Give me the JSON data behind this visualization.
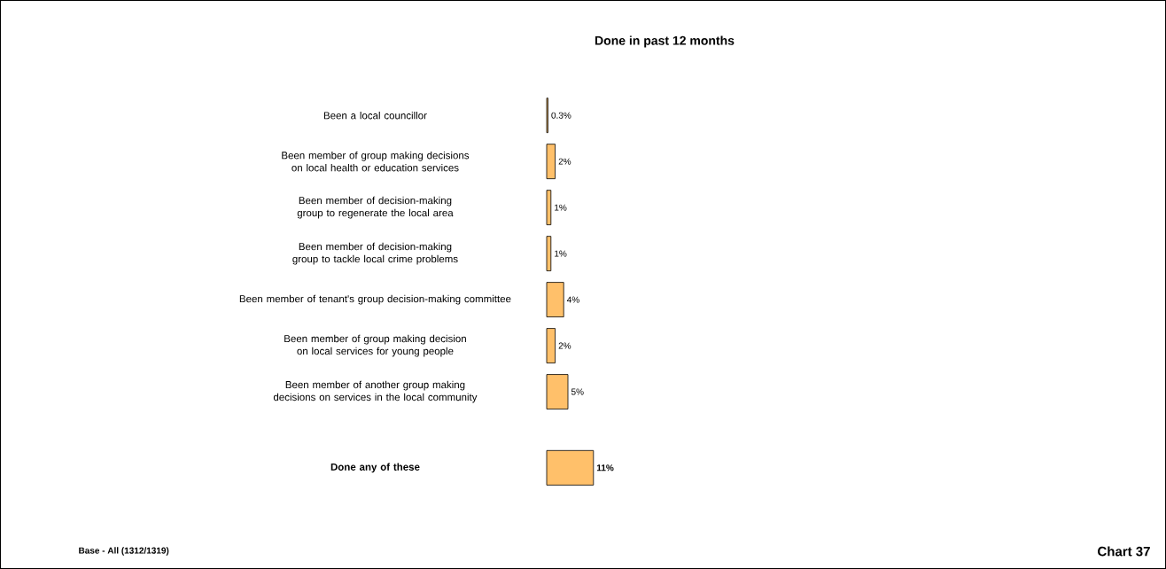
{
  "chart_data": {
    "type": "bar",
    "orientation": "horizontal",
    "title": "Done in past 12 months",
    "categories": [
      "Been a local councillor",
      "Been member of group making decisions on local health or education services",
      "Been member of decision-making group to regenerate the local area",
      "Been member of decision-making group to tackle local crime problems",
      "Been member of tenant's group decision-making committee",
      "Been member of group making decision on local services for young people",
      "Been member of another group making decisions on services in the local community",
      "Done any of these"
    ],
    "values": [
      0.3,
      2,
      1,
      1,
      4,
      2,
      5,
      11
    ],
    "value_labels": [
      "0.3%",
      "2%",
      "1%",
      "1%",
      "4%",
      "2%",
      "5%",
      "11%"
    ],
    "color": "#ffc06a",
    "tick_labels": "y",
    "annotations": [
      "Base - All  (1312/1319)",
      "Chart 37"
    ]
  }
}
